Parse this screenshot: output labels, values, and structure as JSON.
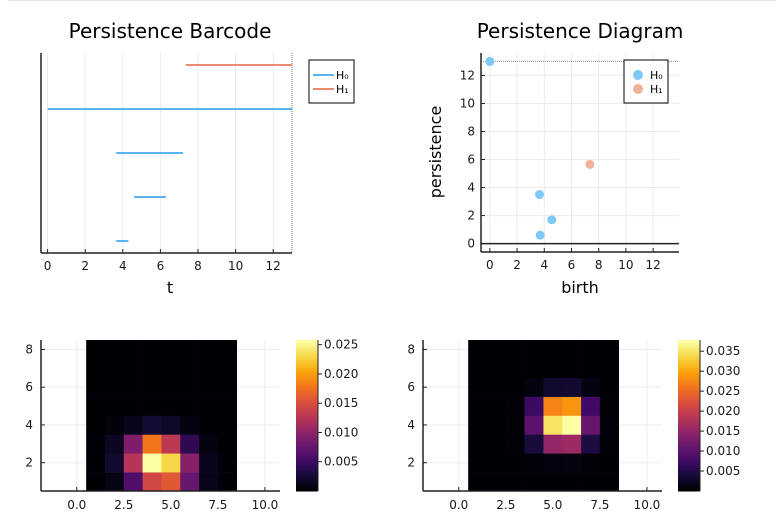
{
  "chart_data": [
    {
      "id": "barcode",
      "type": "barcode",
      "title": "Persistence Barcode",
      "xlabel": "t",
      "ylabel": "",
      "xlim": [
        -0.35,
        13
      ],
      "xticks": [
        0,
        2,
        4,
        6,
        8,
        10,
        12
      ],
      "xtick_labels": [
        "0",
        "2",
        "4",
        "6",
        "8",
        "10",
        "12"
      ],
      "infinity_line": 13,
      "grid": true,
      "legend": {
        "placement": "outer-top-right",
        "entries": [
          {
            "label": "H₀",
            "color": "#5ab4f0"
          },
          {
            "label": "H₁",
            "color": "#ea8c6e"
          }
        ]
      },
      "bars": [
        {
          "dim": 1,
          "birth": 7.35,
          "death": 13
        },
        {
          "dim": 0,
          "birth": 0,
          "death": 13
        },
        {
          "dim": 0,
          "birth": 3.65,
          "death": 7.2
        },
        {
          "dim": 0,
          "birth": 4.6,
          "death": 6.3
        },
        {
          "dim": 0,
          "birth": 3.65,
          "death": 4.3
        }
      ]
    },
    {
      "id": "diagram",
      "type": "scatter",
      "title": "Persistence Diagram",
      "xlabel": "birth",
      "ylabel": "persistence",
      "xlim": [
        -0.65,
        13.9
      ],
      "ylim": [
        -0.6,
        13.6
      ],
      "xticks": [
        0,
        2,
        4,
        6,
        8,
        10,
        12
      ],
      "xtick_labels": [
        "0",
        "2",
        "4",
        "6",
        "8",
        "10",
        "12"
      ],
      "yticks": [
        0,
        2,
        4,
        6,
        8,
        10,
        12
      ],
      "ytick_labels": [
        "0",
        "2",
        "4",
        "6",
        "8",
        "10",
        "12"
      ],
      "infinity_line": 13,
      "grid": true,
      "legend": {
        "placement": "top-right",
        "entries": [
          {
            "label": "H₀",
            "color": "#7fc9f7"
          },
          {
            "label": "H₁",
            "color": "#eeb29c"
          }
        ]
      },
      "series": [
        {
          "name": "H₀",
          "color": "#7fc9f7",
          "points": [
            [
              0,
              13
            ],
            [
              3.65,
              3.5
            ],
            [
              4.55,
              1.7
            ],
            [
              3.7,
              0.6
            ]
          ]
        },
        {
          "name": "H₁",
          "color": "#eeb29c",
          "points": [
            [
              7.35,
              5.65
            ]
          ]
        }
      ]
    },
    {
      "id": "heatmap-h0",
      "type": "heatmap",
      "title": "",
      "xlabel": "",
      "ylabel": "",
      "xlim": [
        -1.9,
        10.8
      ],
      "ylim": [
        0.5,
        8.5
      ],
      "xticks": [
        0,
        2.5,
        5,
        7.5,
        10
      ],
      "xtick_labels": [
        "0.0",
        "2.5",
        "5.0",
        "7.5",
        "10.0"
      ],
      "yticks": [
        2,
        4,
        6,
        8
      ],
      "ytick_labels": [
        "2",
        "4",
        "6",
        "8"
      ],
      "x": [
        1,
        2,
        3,
        4,
        5,
        6,
        7,
        8
      ],
      "y": [
        1,
        2,
        3,
        4,
        5,
        6,
        7,
        8
      ],
      "colorbar": {
        "min": 0,
        "max": 0.0258,
        "ticks": [
          0.005,
          0.01,
          0.015,
          0.02,
          0.025
        ],
        "tick_labels": [
          "0.005",
          "0.010",
          "0.015",
          "0.020",
          "0.025"
        ],
        "colormap": "inferno"
      },
      "values": [
        [
          0.0,
          0.0008,
          0.006,
          0.0145,
          0.016,
          0.0075,
          0.001,
          0.0001
        ],
        [
          0.0001,
          0.002,
          0.0125,
          0.0258,
          0.0232,
          0.0095,
          0.0012,
          0.0001
        ],
        [
          0.0001,
          0.0015,
          0.009,
          0.018,
          0.013,
          0.004,
          0.0006,
          0.0
        ],
        [
          0.0,
          0.0003,
          0.0012,
          0.0025,
          0.0018,
          0.0006,
          0.0001,
          0.0
        ],
        [
          0.0,
          0.0,
          0.0,
          0.0,
          0.0,
          0.0,
          0.0,
          0.0
        ],
        [
          0.0,
          0.0,
          0.0,
          0.0,
          0.0,
          0.0,
          0.0,
          0.0
        ],
        [
          0.0,
          0.0,
          0.0,
          0.0,
          0.0,
          0.0,
          0.0,
          0.0
        ],
        [
          0.0,
          0.0,
          0.0,
          0.0,
          0.0,
          0.0,
          0.0,
          0.0
        ]
      ]
    },
    {
      "id": "heatmap-h1",
      "type": "heatmap",
      "title": "",
      "xlabel": "",
      "ylabel": "",
      "xlim": [
        -1.9,
        10.8
      ],
      "ylim": [
        0.5,
        8.5
      ],
      "xticks": [
        0,
        2.5,
        5,
        7.5,
        10
      ],
      "xtick_labels": [
        "0.0",
        "2.5",
        "5.0",
        "7.5",
        "10.0"
      ],
      "yticks": [
        2,
        4,
        6,
        8
      ],
      "ytick_labels": [
        "2",
        "4",
        "6",
        "8"
      ],
      "x": [
        1,
        2,
        3,
        4,
        5,
        6,
        7,
        8
      ],
      "y": [
        1,
        2,
        3,
        4,
        5,
        6,
        7,
        8
      ],
      "colorbar": {
        "min": 0,
        "max": 0.0378,
        "ticks": [
          0.005,
          0.01,
          0.015,
          0.02,
          0.025,
          0.03,
          0.035
        ],
        "tick_labels": [
          "0.005",
          "0.010",
          "0.015",
          "0.020",
          "0.025",
          "0.030",
          "0.035"
        ],
        "colormap": "inferno"
      },
      "values": [
        [
          0.0,
          0.0,
          0.0,
          0.0,
          0.0,
          0.0,
          0.0,
          0.0
        ],
        [
          0.0,
          0.0,
          0.0,
          0.0002,
          0.0008,
          0.0009,
          0.0003,
          0.0
        ],
        [
          0.0,
          0.0,
          0.0002,
          0.004,
          0.015,
          0.016,
          0.0045,
          0.0002
        ],
        [
          0.0,
          0.0,
          0.0003,
          0.01,
          0.0352,
          0.0378,
          0.011,
          0.0004
        ],
        [
          0.0,
          0.0,
          0.0002,
          0.007,
          0.0275,
          0.029,
          0.0075,
          0.0002
        ],
        [
          0.0,
          0.0,
          0.0,
          0.0008,
          0.003,
          0.0032,
          0.0009,
          0.0
        ],
        [
          0.0,
          0.0,
          0.0,
          0.0,
          0.0,
          0.0,
          0.0,
          0.0
        ],
        [
          0.0,
          0.0,
          0.0,
          0.0,
          0.0,
          0.0,
          0.0,
          0.0
        ]
      ]
    }
  ]
}
